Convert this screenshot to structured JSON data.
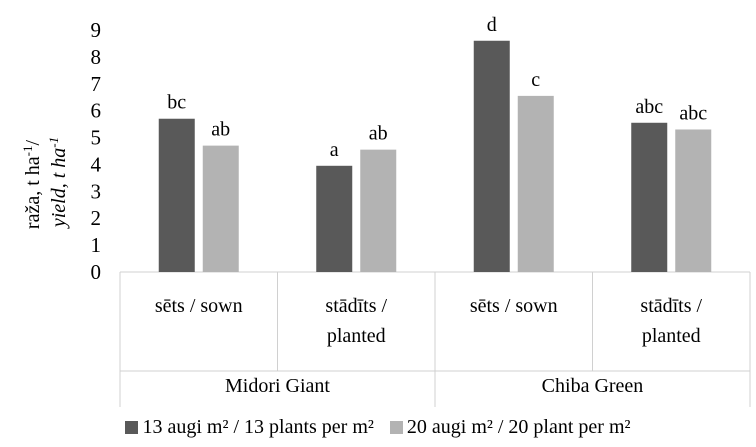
{
  "chart_data": {
    "type": "bar",
    "y_axis_label_line1": "raža, t ha",
    "y_axis_label_line1_sup": "-1",
    "y_axis_label_line1_tail": "/",
    "y_axis_label_line2": "yield, t ha",
    "y_axis_label_line2_sup": "-1",
    "ylim": [
      0,
      9
    ],
    "yticks": [
      "0",
      "1",
      "2",
      "3",
      "4",
      "5",
      "6",
      "7",
      "8",
      "9"
    ],
    "grid": false,
    "legend_position": "bottom",
    "groups": [
      {
        "name": "Midori Giant",
        "categories": [
          {
            "line1": "sēts / sown",
            "line2": ""
          },
          {
            "line1": "stādīts /",
            "line2": "planted"
          }
        ]
      },
      {
        "name": "Chiba Green",
        "categories": [
          {
            "line1": "sēts / sown",
            "line2": ""
          },
          {
            "line1": "stādīts /",
            "line2": "planted"
          }
        ]
      }
    ],
    "series": [
      {
        "name": "13 augi m² / 13 plants per m²",
        "color": "#595959",
        "values": [
          5.7,
          3.95,
          8.6,
          5.55
        ],
        "labels": [
          "bc",
          "a",
          "d",
          "abc"
        ]
      },
      {
        "name": "20 augi m² / 20 plant per m²",
        "color": "#b3b3b3",
        "values": [
          4.7,
          4.55,
          6.55,
          5.3
        ],
        "labels": [
          "ab",
          "ab",
          "c",
          "abc"
        ]
      }
    ]
  }
}
